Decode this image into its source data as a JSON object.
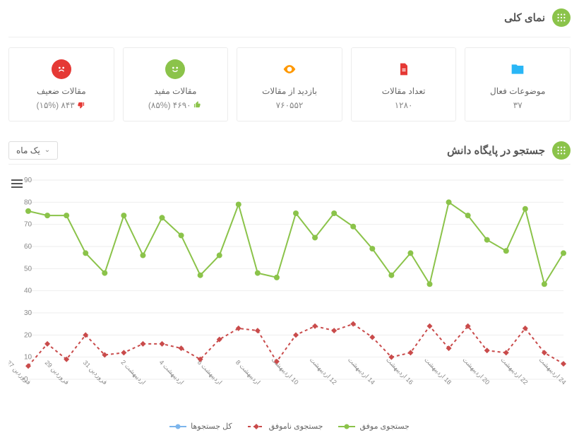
{
  "overview": {
    "title": "نمای کلی",
    "cards": [
      {
        "key": "topics",
        "label": "موضوعات فعال",
        "value": "۳۷",
        "icon": "folder",
        "color": "#29b6f6"
      },
      {
        "key": "articles",
        "label": "تعداد مقالات",
        "value": "۱۲۸۰",
        "icon": "file",
        "color": "#e53935"
      },
      {
        "key": "views",
        "label": "بازدید از مقالات",
        "value": "۷۶۰۵۵۲",
        "icon": "eye",
        "color": "#ff9800"
      },
      {
        "key": "useful",
        "label": "مقالات مفید",
        "value": "۴۶۹۰",
        "pct": "(۸۵%)",
        "thumb": "up",
        "icon": "smile",
        "color": "#8bc34a"
      },
      {
        "key": "weak",
        "label": "مقالات ضعیف",
        "value": "۸۴۳",
        "pct": "(۱۵%)",
        "thumb": "down",
        "icon": "sad",
        "color": "#e53935"
      }
    ]
  },
  "search": {
    "title": "جستجو در پایگاه دانش",
    "dropdown": {
      "selected": "یک ماه"
    },
    "chart": {
      "type": "line",
      "background_color": "#ffffff",
      "grid_color": "#eeeeee",
      "axis_text_color": "#888888",
      "ylim": [
        0,
        90
      ],
      "ytick_step": 10,
      "x_labels": [
        "فروردین 27",
        "",
        "فروردین 29",
        "",
        "فروردین 31",
        "",
        "اردیبهشت 2",
        "",
        "اردیبهشت 4",
        "",
        "اردیبهشت 6",
        "",
        "اردیبهشت 8",
        "",
        "10 اردیبهشت",
        "",
        "12 اردیبهشت",
        "",
        "14 اردیبهشت",
        "",
        "16 اردیبهشت",
        "",
        "18 اردیبهشت",
        "",
        "20 اردیبهشت",
        "",
        "22 اردیبهشت",
        "",
        "24 اردیبهشت"
      ],
      "series": [
        {
          "name": "جستجوی موفق",
          "color": "#8bc34a",
          "dash": null,
          "line_width": 2,
          "marker": "circle",
          "marker_size": 4,
          "data": [
            76,
            74,
            74,
            57,
            48,
            74,
            56,
            73,
            65,
            47,
            56,
            79,
            48,
            46,
            75,
            64,
            75,
            69,
            59,
            47,
            57,
            43,
            80,
            74,
            63,
            58,
            77,
            43,
            57
          ]
        },
        {
          "name": "جستجوی ناموفق",
          "color": "#c94b4b",
          "dash": "4,4",
          "line_width": 2,
          "marker": "diamond",
          "marker_size": 4,
          "data": [
            6,
            16,
            9,
            20,
            11,
            12,
            16,
            16,
            14,
            9,
            18,
            23,
            22,
            8,
            20,
            24,
            22,
            25,
            19,
            10,
            12,
            24,
            14,
            24,
            13,
            12,
            23,
            12,
            7
          ]
        },
        {
          "name": "کل جستجوها",
          "color": "#7cb5ec",
          "dash": null,
          "line_width": 0,
          "marker": "circle",
          "marker_size": 0,
          "data": []
        }
      ],
      "legend": {
        "items": [
          {
            "label": "جستجوی موفق",
            "color": "#8bc34a",
            "marker": "circle",
            "dash": null
          },
          {
            "label": "جستجوی ناموفق",
            "color": "#c94b4b",
            "marker": "diamond",
            "dash": "4,4"
          },
          {
            "label": "کل جستجوها",
            "color": "#7cb5ec",
            "marker": "circle",
            "dash": null
          }
        ]
      }
    }
  }
}
